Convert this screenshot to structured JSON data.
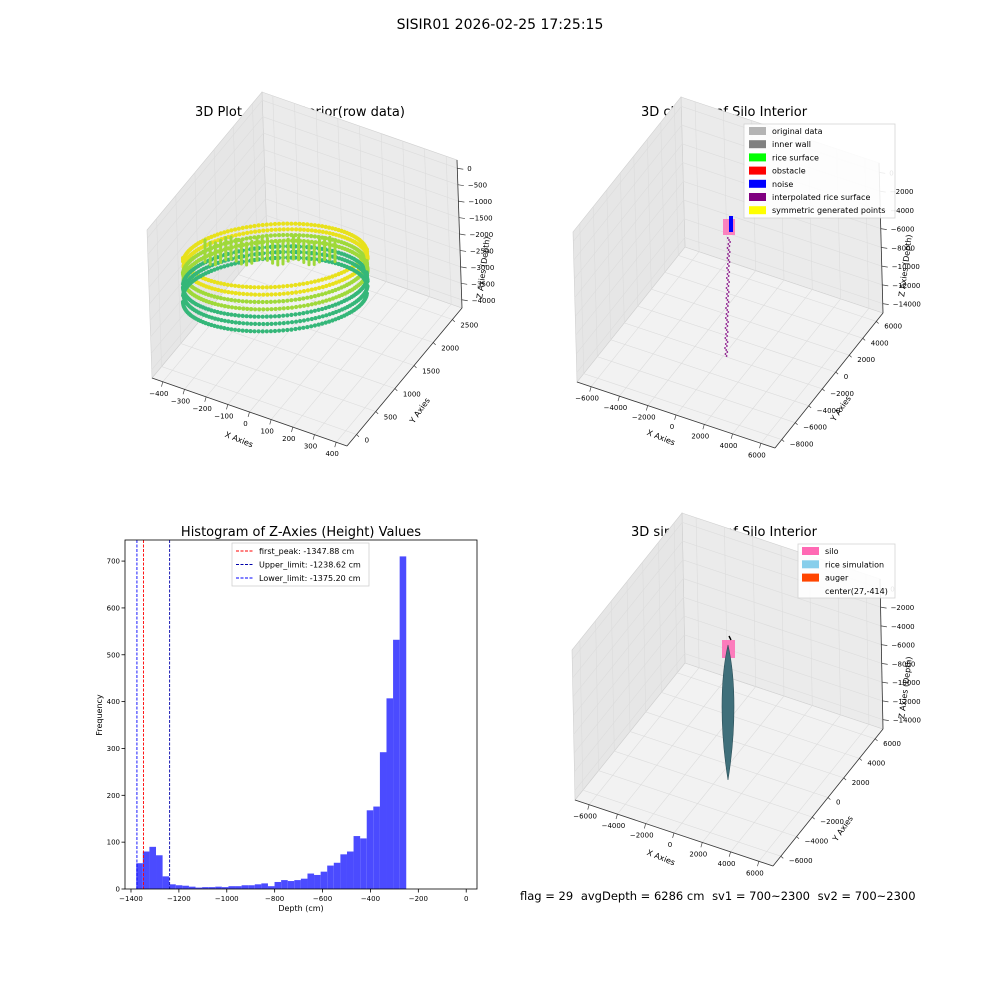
{
  "figure": {
    "suptitle": "SISIR01 2026-02-25 17:25:15",
    "status": {
      "flag": "flag = 29",
      "avg_depth": "avgDepth = 6286 cm",
      "sv1": "sv1 = 700~2300",
      "sv2": "sv2 = 700~2300"
    }
  },
  "chart_data": [
    {
      "type": "scatter3d",
      "title": "3D Plot of Silo Interior(row data)",
      "xlabel": "X Axies",
      "ylabel": "Y Axies",
      "zlabel": "Z Axies (Depth)",
      "xticks": [
        "−400",
        "−300",
        "−200",
        "−100",
        "0",
        "100",
        "200",
        "300",
        "400"
      ],
      "yticks": [
        "0",
        "500",
        "1000",
        "1500",
        "2000",
        "2500"
      ],
      "zticks": [
        "0",
        "−500",
        "−1000",
        "−1500",
        "−2000",
        "−2500",
        "−3000",
        "−3500",
        "−4000"
      ],
      "colormap": "viridis",
      "colors": {
        "ring_top": "#e8e11c",
        "ring_mid": "#9fd93a",
        "ring_bottom": "#35b779"
      }
    },
    {
      "type": "scatter3d",
      "title": "3D classify of Silo Interior",
      "xlabel": "X Axies",
      "ylabel": "Y Axies",
      "zlabel": "Z Axies (Depth)",
      "xticks": [
        "−6000",
        "−4000",
        "−2000",
        "0",
        "2000",
        "4000",
        "6000"
      ],
      "yticks": [
        "−8000",
        "−6000",
        "−4000",
        "−2000",
        "0",
        "2000",
        "4000",
        "6000"
      ],
      "zticks": [
        "0",
        "−2000",
        "−4000",
        "−6000",
        "−8000",
        "−10000",
        "−12000",
        "−14000"
      ],
      "legend_position": "top-right",
      "legend": [
        {
          "label": "original data",
          "color": "#b4b4b4"
        },
        {
          "label": "inner wall",
          "color": "#808080"
        },
        {
          "label": "rice surface",
          "color": "#00ff00"
        },
        {
          "label": "obstacle",
          "color": "#ff0000"
        },
        {
          "label": "noise",
          "color": "#0000ff"
        },
        {
          "label": "interpolated rice surface",
          "color": "#800080"
        },
        {
          "label": "symmetric generated points",
          "color": "#ffff00"
        }
      ]
    },
    {
      "type": "bar",
      "title": "Histogram of Z-Axies (Height) Values",
      "xlabel": "Depth (cm)",
      "ylabel": "Frequency",
      "xlim": [
        -1425,
        45
      ],
      "ylim": [
        0,
        745
      ],
      "xticks": [
        {
          "v": -1400,
          "label": "−1400"
        },
        {
          "v": -1200,
          "label": "−1200"
        },
        {
          "v": -1000,
          "label": "−1000"
        },
        {
          "v": -800,
          "label": "−800"
        },
        {
          "v": -600,
          "label": "−600"
        },
        {
          "v": -400,
          "label": "−400"
        },
        {
          "v": -200,
          "label": "−200"
        },
        {
          "v": 0,
          "label": "0"
        }
      ],
      "yticks": [
        {
          "v": 0,
          "label": "0"
        },
        {
          "v": 100,
          "label": "100"
        },
        {
          "v": 200,
          "label": "200"
        },
        {
          "v": 300,
          "label": "300"
        },
        {
          "v": 400,
          "label": "400"
        },
        {
          "v": 500,
          "label": "500"
        },
        {
          "v": 600,
          "label": "600"
        },
        {
          "v": 700,
          "label": "700"
        }
      ],
      "bar_color": "#4b4bff",
      "bin_start": -1378,
      "bin_width": 27.5,
      "values": [
        55,
        80,
        90,
        72,
        27,
        10,
        8,
        7,
        5,
        3,
        4,
        4,
        5,
        4,
        6,
        6,
        8,
        8,
        10,
        12,
        6,
        15,
        19,
        17,
        19,
        22,
        33,
        30,
        37,
        50,
        56,
        74,
        80,
        113,
        108,
        168,
        176,
        292,
        407,
        532,
        710
      ],
      "lines": [
        {
          "label": "first_peak: -1347.88 cm",
          "x": -1347.88,
          "color": "#ff0000"
        },
        {
          "label": "Upper_limit: -1238.62 cm",
          "x": -1238.62,
          "color": "#0000aa"
        },
        {
          "label": "Lower_limit: -1375.20 cm",
          "x": -1375.2,
          "color": "#0000ff"
        }
      ],
      "legend_position": "top-center"
    },
    {
      "type": "surface3d",
      "title": "3D simulation of Silo Interior",
      "xlabel": "X Axies",
      "ylabel": "Y Axies",
      "zlabel": "Z Axies (Depth)",
      "xticks": [
        "−6000",
        "−4000",
        "−2000",
        "0",
        "2000",
        "4000",
        "6000"
      ],
      "yticks": [
        "−6000",
        "−4000",
        "−2000",
        "0",
        "2000",
        "4000",
        "6000"
      ],
      "zticks": [
        "0",
        "−2000",
        "−4000",
        "−6000",
        "−8000",
        "−10000",
        "−12000",
        "−14000"
      ],
      "legend_position": "top-right",
      "legend": [
        {
          "label": "silo",
          "color": "#ff69b4"
        },
        {
          "label": "rice simulation",
          "color": "#87ceeb"
        },
        {
          "label": "auger",
          "color": "#ff4500"
        },
        {
          "label": "center(27,-414)",
          "color": ""
        }
      ]
    }
  ]
}
